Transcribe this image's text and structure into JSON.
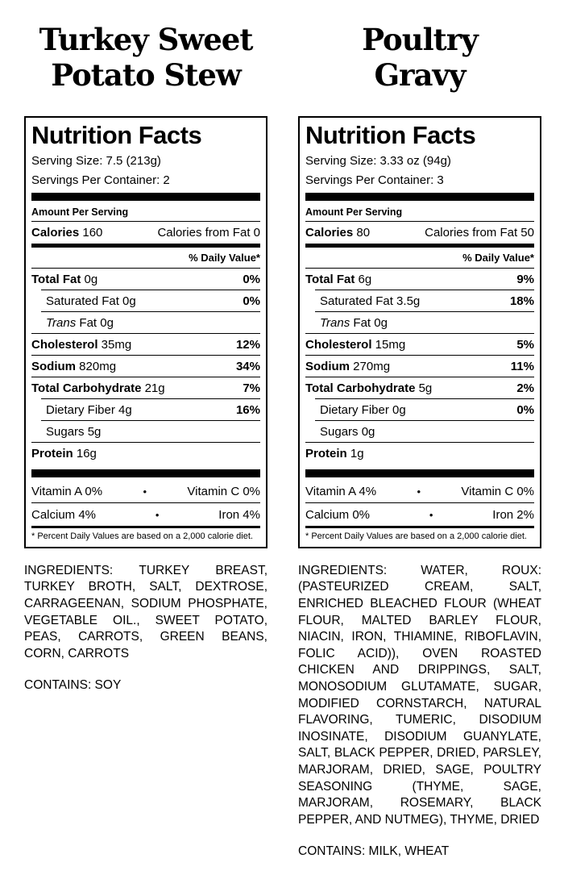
{
  "products": [
    {
      "title": [
        "Turkey Sweet",
        "Potato Stew"
      ],
      "nutrition": {
        "heading": "Nutrition Facts",
        "serving_size": "Serving Size: 7.5 (213g)",
        "servings_per_container": "Servings Per Container: 2",
        "amount_per_serving": "Amount Per Serving",
        "calories_word": "Calories",
        "calories_value": " 160",
        "calories_from_fat": "Calories from Fat 0",
        "daily_value_header": "% Daily Value*",
        "rows": [
          {
            "lead": "Total Fat",
            "rest": " 0g",
            "pct": "0%"
          },
          {
            "rest": "Saturated Fat 0g",
            "pct": "0%"
          },
          {
            "lead_italic": "Trans",
            "rest": " Fat 0g"
          },
          {
            "lead": "Cholesterol",
            "rest": " 35mg",
            "pct": "12%"
          },
          {
            "lead": "Sodium",
            "rest": " 820mg",
            "pct": "34%"
          },
          {
            "lead": "Total Carbohydrate",
            "rest": " 21g",
            "pct": "7%"
          },
          {
            "rest": "Dietary Fiber 4g",
            "pct": "16%"
          },
          {
            "rest": "Sugars 5g"
          },
          {
            "lead": "Protein",
            "rest": " 16g"
          }
        ],
        "micronutrients": [
          {
            "left": "Vitamin A 0%",
            "right": "Vitamin C 0%"
          },
          {
            "left": "Calcium 4%",
            "right": "Iron 4%"
          }
        ],
        "bullet": "•",
        "footnote": "* Percent Daily Values are based on a 2,000 calorie diet."
      },
      "ingredients": "INGREDIENTS: TURKEY BREAST, TURKEY BROTH, SALT, DEXTROSE, CARRAGEENAN, SODIUM PHOSPHATE, VEGETABLE OIL., SWEET POTATO, PEAS, CARROTS, GREEN BEANS, CORN, CARROTS",
      "contains": "CONTAINS: SOY"
    },
    {
      "title": [
        "Poultry",
        "Gravy"
      ],
      "nutrition": {
        "heading": "Nutrition Facts",
        "serving_size": "Serving Size: 3.33 oz (94g)",
        "servings_per_container": "Servings Per Container: 3",
        "amount_per_serving": "Amount Per Serving",
        "calories_word": "Calories",
        "calories_value": " 80",
        "calories_from_fat": "Calories from Fat 50",
        "daily_value_header": "% Daily Value*",
        "rows": [
          {
            "lead": "Total Fat",
            "rest": " 6g",
            "pct": "9%"
          },
          {
            "rest": "Saturated Fat 3.5g",
            "pct": "18%"
          },
          {
            "lead_italic": "Trans",
            "rest": " Fat 0g"
          },
          {
            "lead": "Cholesterol",
            "rest": " 15mg",
            "pct": "5%"
          },
          {
            "lead": "Sodium",
            "rest": " 270mg",
            "pct": "11%"
          },
          {
            "lead": "Total Carbohydrate",
            "rest": " 5g",
            "pct": "2%"
          },
          {
            "rest": "Dietary Fiber 0g",
            "pct": "0%"
          },
          {
            "rest": "Sugars 0g"
          },
          {
            "lead": "Protein",
            "rest": " 1g"
          }
        ],
        "micronutrients": [
          {
            "left": "Vitamin A 4%",
            "right": "Vitamin C 0%"
          },
          {
            "left": "Calcium 0%",
            "right": "Iron 2%"
          }
        ],
        "bullet": "•",
        "footnote": "* Percent Daily Values are based on a 2,000 calorie diet."
      },
      "ingredients": "INGREDIENTS: WATER, ROUX: (PASTEURIZED CREAM, SALT, ENRICHED BLEACHED FLOUR (WHEAT FLOUR, MALTED BARLEY FLOUR, NIACIN, IRON, THIAMINE, RIBOFLAVIN, FOLIC ACID)), OVEN ROASTED CHICKEN AND DRIPPINGS, SALT, MONOSODIUM GLUTAMATE, SUGAR, MODIFIED CORNSTARCH, NATURAL FLAVORING, TUMERIC, DISODIUM INOSINATE, DISODIUM GUANYLATE, SALT, BLACK PEPPER, DRIED, PARSLEY, MARJORAM, DRIED, SAGE, POULTRY SEASONING (THYME, SAGE, MARJORAM, ROSEMARY, BLACK PEPPER, AND NUTMEG), THYME, DRIED",
      "contains": "CONTAINS: MILK, WHEAT"
    }
  ]
}
